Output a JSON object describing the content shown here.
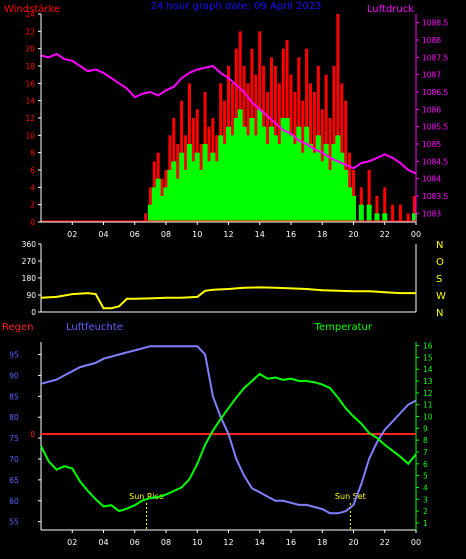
{
  "colors": {
    "background": "#000000",
    "axis": "#ffffff",
    "wind_axis": "#ff0000",
    "pressure": "#ff00ff",
    "title": "#1010ff",
    "wind_avg": "#00ff00",
    "wind_gust": "#ff0000",
    "direction": "#ffff00",
    "direction_axis": "#ffff00",
    "rain": "#ff2020",
    "humidity": "#7f7fff",
    "temperature": "#00ff00",
    "temp_axis": "#00ff00",
    "hum_axis": "#6060ff",
    "sun_label": "#ffff00"
  },
  "chart_data": [
    {
      "type": "bar",
      "title": "24 hour graph date: 09 April 2023",
      "left_axis_label": "Windstärke",
      "right_axis_label": "Luftdruck",
      "x_ticks": [
        "02",
        "04",
        "06",
        "08",
        "10",
        "12",
        "14",
        "16",
        "18",
        "20",
        "22",
        "00"
      ],
      "y_left_ticks": [
        "0",
        "2",
        "4",
        "6",
        "8",
        "10",
        "12",
        "14",
        "16",
        "18",
        "20",
        "22",
        "24"
      ],
      "y_left_range": [
        0,
        24
      ],
      "y_right_ticks": [
        "1083",
        "1083.5",
        "1084",
        "1084.5",
        "1085",
        "1085.5",
        "1086",
        "1086.5",
        "1087",
        "1087.5",
        "1088",
        "1088.5"
      ],
      "y_right_range": [
        1082.75,
        1088.75
      ],
      "x_range_hours": [
        0,
        24
      ],
      "series": [
        {
          "name": "Luftdruck",
          "kind": "line",
          "x": [
            0,
            0.5,
            1,
            1.5,
            2,
            2.5,
            3,
            3.5,
            4,
            4.5,
            5,
            5.5,
            6,
            6.5,
            7,
            7.5,
            8,
            8.5,
            9,
            9.5,
            10,
            10.5,
            11,
            11.5,
            12,
            12.5,
            13,
            13.5,
            14,
            14.5,
            15,
            15.5,
            16,
            16.5,
            17,
            17.5,
            18,
            18.5,
            19,
            19.5,
            20,
            20.5,
            21,
            21.5,
            22,
            22.5,
            23,
            23.5,
            24
          ],
          "y": [
            1087.55,
            1087.5,
            1087.6,
            1087.45,
            1087.4,
            1087.25,
            1087.1,
            1087.15,
            1087.05,
            1086.9,
            1086.75,
            1086.6,
            1086.35,
            1086.45,
            1086.5,
            1086.4,
            1086.55,
            1086.65,
            1086.9,
            1087.05,
            1087.15,
            1087.2,
            1087.25,
            1087.05,
            1086.9,
            1086.7,
            1086.5,
            1086.2,
            1086.0,
            1085.8,
            1085.6,
            1085.4,
            1085.3,
            1085.1,
            1085.0,
            1084.85,
            1084.75,
            1084.6,
            1084.5,
            1084.4,
            1084.3,
            1084.45,
            1084.5,
            1084.6,
            1084.7,
            1084.6,
            1084.45,
            1084.25,
            1084.15
          ]
        },
        {
          "name": "wind_gust",
          "kind": "bar",
          "x": [
            0,
            1,
            2,
            3,
            4,
            5,
            6,
            6.7,
            7,
            7.25,
            7.5,
            7.75,
            8,
            8.25,
            8.5,
            8.75,
            9,
            9.25,
            9.5,
            9.75,
            10,
            10.25,
            10.5,
            10.75,
            11,
            11.25,
            11.5,
            11.75,
            12,
            12.25,
            12.5,
            12.75,
            13,
            13.25,
            13.5,
            13.75,
            14,
            14.25,
            14.5,
            14.75,
            15,
            15.25,
            15.5,
            15.75,
            16,
            16.25,
            16.5,
            16.75,
            17,
            17.25,
            17.5,
            17.75,
            18,
            18.25,
            18.5,
            18.75,
            19,
            19.25,
            19.5,
            19.75,
            20,
            20.5,
            21,
            21.5,
            22,
            22.5,
            23,
            23.5,
            23.9
          ],
          "y": [
            0,
            0,
            0,
            0,
            0,
            0,
            0,
            1,
            4,
            7,
            8,
            5,
            6,
            10,
            12,
            9,
            14,
            10,
            16,
            12,
            13,
            9,
            15,
            11,
            12,
            10,
            16,
            14,
            18,
            16,
            20,
            22,
            18,
            16,
            20,
            17,
            22,
            18,
            15,
            19,
            18,
            16,
            20,
            21,
            17,
            15,
            19,
            14,
            20,
            16,
            15,
            18,
            13,
            17,
            12,
            18,
            24,
            16,
            14,
            8,
            6,
            4,
            6,
            3,
            4,
            2,
            2,
            1,
            3
          ]
        },
        {
          "name": "wind_avg",
          "kind": "bar",
          "x": [
            0,
            1,
            2,
            3,
            4,
            5,
            6,
            6.7,
            7,
            7.25,
            7.5,
            7.75,
            8,
            8.25,
            8.5,
            8.75,
            9,
            9.25,
            9.5,
            9.75,
            10,
            10.25,
            10.5,
            10.75,
            11,
            11.25,
            11.5,
            11.75,
            12,
            12.25,
            12.5,
            12.75,
            13,
            13.25,
            13.5,
            13.75,
            14,
            14.25,
            14.5,
            14.75,
            15,
            15.25,
            15.5,
            15.75,
            16,
            16.25,
            16.5,
            16.75,
            17,
            17.25,
            17.5,
            17.75,
            18,
            18.25,
            18.5,
            18.75,
            19,
            19.25,
            19.5,
            19.75,
            20,
            20.5,
            21,
            21.5,
            22,
            22.5,
            23,
            23.5,
            23.9
          ],
          "y": [
            0,
            0,
            0,
            0,
            0,
            0,
            0,
            0,
            2,
            4,
            5,
            3,
            4,
            6,
            7,
            5,
            8,
            6,
            9,
            7,
            8,
            6,
            9,
            7,
            8,
            7,
            10,
            9,
            11,
            10,
            12,
            13,
            11,
            10,
            12,
            10,
            13,
            11,
            9,
            11,
            10,
            9,
            12,
            12,
            10,
            9,
            11,
            8,
            11,
            9,
            8,
            10,
            7,
            9,
            6,
            9,
            10,
            8,
            6,
            4,
            3,
            2,
            2,
            1,
            1,
            0,
            0,
            0,
            1
          ]
        }
      ]
    },
    {
      "type": "line",
      "right_axis_ticks": [
        "N",
        "W",
        "S",
        "O",
        "N"
      ],
      "y_left_ticks": [
        "0",
        "90",
        "180",
        "270",
        "360"
      ],
      "y_range": [
        0,
        360
      ],
      "x_range_hours": [
        0,
        24
      ],
      "series": [
        {
          "name": "wind_direction",
          "x": [
            0,
            1,
            2,
            3,
            3.5,
            4,
            4.5,
            5,
            5.5,
            6,
            7,
            8,
            9,
            10,
            10.5,
            11,
            12,
            13,
            14,
            15,
            16,
            17,
            18,
            19,
            20,
            21,
            22,
            23,
            24
          ],
          "y": [
            75,
            80,
            95,
            100,
            95,
            20,
            20,
            30,
            70,
            70,
            72,
            75,
            75,
            80,
            112,
            118,
            122,
            128,
            130,
            128,
            125,
            122,
            115,
            112,
            110,
            110,
            105,
            100,
            100
          ]
        }
      ]
    },
    {
      "type": "line",
      "left_axis_label": "Regen",
      "mid_axis_label": "Luftfeuchte",
      "right_axis_label": "Temperatur",
      "x_ticks": [
        "02",
        "04",
        "06",
        "08",
        "10",
        "12",
        "14",
        "16",
        "18",
        "20",
        "22",
        "00"
      ],
      "y_humidity_ticks": [
        "55",
        "60",
        "65",
        "70",
        "75",
        "80",
        "85",
        "90",
        "95"
      ],
      "y_humidity_range": [
        53,
        98
      ],
      "y_rain_ticks": [
        "0"
      ],
      "y_temp_ticks": [
        "1",
        "2",
        "3",
        "4",
        "5",
        "6",
        "7",
        "8",
        "9",
        "10",
        "11",
        "12",
        "13",
        "14",
        "15",
        "16"
      ],
      "y_temp_range": [
        0.4,
        16.3
      ],
      "x_range_hours": [
        0,
        24
      ],
      "annotations": [
        {
          "text": "Sun Rise",
          "x": 6.75
        },
        {
          "text": "Sun Set",
          "x": 19.8
        }
      ],
      "series": [
        {
          "name": "Luftfeuchte",
          "x": [
            0,
            0.5,
            1,
            1.5,
            2,
            2.5,
            3,
            3.5,
            4,
            4.5,
            5,
            5.5,
            6,
            6.5,
            7,
            7.5,
            8,
            8.5,
            9,
            9.5,
            10,
            10.5,
            11,
            11.5,
            12,
            12.5,
            13,
            13.5,
            14,
            14.5,
            15,
            15.5,
            16,
            16.5,
            17,
            17.5,
            18,
            18.5,
            19,
            19.5,
            20,
            20.5,
            21,
            21.5,
            22,
            22.5,
            23,
            23.5,
            24
          ],
          "y": [
            88,
            88.5,
            89,
            90,
            91,
            92,
            92.5,
            93,
            94,
            94.5,
            95,
            95.5,
            96,
            96.5,
            97,
            97,
            97,
            97,
            97,
            97,
            97,
            95,
            85,
            80,
            76,
            70,
            66,
            63,
            62,
            61,
            60,
            60,
            59.5,
            59,
            59,
            58.5,
            58,
            57,
            57,
            57.5,
            59,
            64,
            70,
            74,
            77,
            79,
            81,
            83,
            84
          ]
        },
        {
          "name": "Temperatur",
          "x": [
            0,
            0.5,
            1,
            1.5,
            2,
            2.5,
            3,
            3.5,
            4,
            4.5,
            5,
            5.5,
            6,
            6.5,
            7,
            7.5,
            8,
            8.5,
            9,
            9.5,
            10,
            10.5,
            11,
            11.5,
            12,
            12.5,
            13,
            13.5,
            14,
            14.5,
            15,
            15.5,
            16,
            16.5,
            17,
            17.5,
            18,
            18.5,
            19,
            19.5,
            20,
            20.5,
            21,
            21.5,
            22,
            22.5,
            23,
            23.5,
            24
          ],
          "y": [
            7.5,
            6.2,
            5.5,
            5.8,
            5.6,
            4.5,
            3.7,
            3.0,
            2.4,
            2.5,
            2.0,
            2.2,
            2.5,
            2.9,
            3.1,
            3.2,
            3.4,
            3.7,
            4.0,
            4.7,
            6.0,
            7.6,
            8.8,
            9.8,
            10.7,
            11.6,
            12.4,
            13.0,
            13.6,
            13.2,
            13.3,
            13.1,
            13.2,
            13.0,
            13.0,
            12.9,
            12.7,
            12.4,
            11.6,
            10.7,
            10.0,
            9.4,
            8.6,
            8.2,
            7.6,
            7.1,
            6.6,
            6.0,
            6.8
          ]
        }
      ]
    }
  ]
}
